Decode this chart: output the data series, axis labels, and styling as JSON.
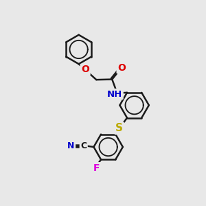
{
  "bg_color": "#e8e8e8",
  "bond_color": "#1a1a1a",
  "bond_width": 1.8,
  "atom_colors": {
    "O": "#dd0000",
    "N": "#0000cc",
    "S": "#bbaa00",
    "C": "#1a1a1a",
    "F": "#dd00dd",
    "H": "#1a1a1a"
  },
  "font_size": 10
}
